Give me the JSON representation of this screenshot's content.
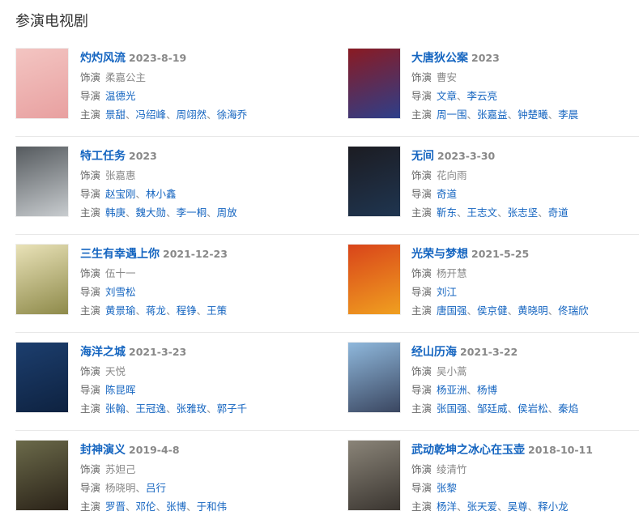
{
  "section_title": "参演电视剧",
  "labels": {
    "role": "饰演",
    "director": "导演",
    "cast": "主演"
  },
  "items": [
    {
      "title": "灼灼风流",
      "date": "2023-8-19",
      "role": "柔嘉公主",
      "directors": [
        {
          "name": "温德光",
          "linked": true
        }
      ],
      "cast": [
        "景甜",
        "冯绍峰",
        "周翊然",
        "徐海乔"
      ],
      "poster_colors": [
        "#f3c5c2",
        "#e8a0a0"
      ]
    },
    {
      "title": "大唐狄公案",
      "date": "2023",
      "role": "曹安",
      "directors": [
        {
          "name": "文章",
          "linked": true
        },
        {
          "name": "李云亮",
          "linked": true
        }
      ],
      "cast": [
        "周一围",
        "张嘉益",
        "钟楚曦",
        "李晨"
      ],
      "poster_colors": [
        "#8a1a22",
        "#2d3f8a"
      ]
    },
    {
      "title": "特工任务",
      "date": "2023",
      "role": "张嘉惠",
      "directors": [
        {
          "name": "赵宝刚",
          "linked": true
        },
        {
          "name": "林小鑫",
          "linked": true
        }
      ],
      "cast": [
        "韩庚",
        "魏大勋",
        "李一桐",
        "周放"
      ],
      "poster_colors": [
        "#555a5e",
        "#c8cccf"
      ]
    },
    {
      "title": "无间",
      "date": "2023-3-30",
      "role": "花向雨",
      "directors": [
        {
          "name": "奇道",
          "linked": true
        }
      ],
      "cast": [
        "靳东",
        "王志文",
        "张志坚",
        "奇道"
      ],
      "poster_colors": [
        "#1c1c22",
        "#1f3550"
      ]
    },
    {
      "title": "三生有幸遇上你",
      "date": "2021-12-23",
      "role": "伍十一",
      "directors": [
        {
          "name": "刘雪松",
          "linked": true
        }
      ],
      "cast": [
        "黄景瑜",
        "蒋龙",
        "程铮",
        "王策"
      ],
      "poster_colors": [
        "#e9e2b8",
        "#8e8a4a"
      ]
    },
    {
      "title": "光荣与梦想",
      "date": "2021-5-25",
      "role": "杨开慧",
      "directors": [
        {
          "name": "刘江",
          "linked": true
        }
      ],
      "cast": [
        "唐国强",
        "侯京健",
        "黄晓明",
        "佟瑞欣"
      ],
      "poster_colors": [
        "#d9441a",
        "#f0a020"
      ]
    },
    {
      "title": "海洋之城",
      "date": "2021-3-23",
      "role": "天悦",
      "directors": [
        {
          "name": "陈昆晖",
          "linked": true
        }
      ],
      "cast": [
        "张翰",
        "王冠逸",
        "张雅玫",
        "郭子千"
      ],
      "poster_colors": [
        "#1c3e6e",
        "#0e2240"
      ]
    },
    {
      "title": "经山历海",
      "date": "2021-3-22",
      "role": "吴小蒿",
      "directors": [
        {
          "name": "杨亚洲",
          "linked": true
        },
        {
          "name": "杨博",
          "linked": true
        }
      ],
      "cast": [
        "张国强",
        "邹廷威",
        "侯岩松",
        "秦焰"
      ],
      "poster_colors": [
        "#8fb8dc",
        "#3a4660"
      ]
    },
    {
      "title": "封神演义",
      "date": "2019-4-8",
      "role": "苏妲己",
      "directors": [
        {
          "name": "杨晓明",
          "linked": false
        },
        {
          "name": "吕行",
          "linked": true
        }
      ],
      "cast": [
        "罗晋",
        "邓伦",
        "张博",
        "于和伟"
      ],
      "poster_colors": [
        "#6b6a4a",
        "#2a2218"
      ]
    },
    {
      "title": "武动乾坤之冰心在玉壶",
      "date": "2018-10-11",
      "role": "绫清竹",
      "directors": [
        {
          "name": "张黎",
          "linked": true
        }
      ],
      "cast": [
        "杨洋",
        "张天爱",
        "吴尊",
        "释小龙"
      ],
      "poster_colors": [
        "#8a8478",
        "#3a3530"
      ]
    }
  ]
}
